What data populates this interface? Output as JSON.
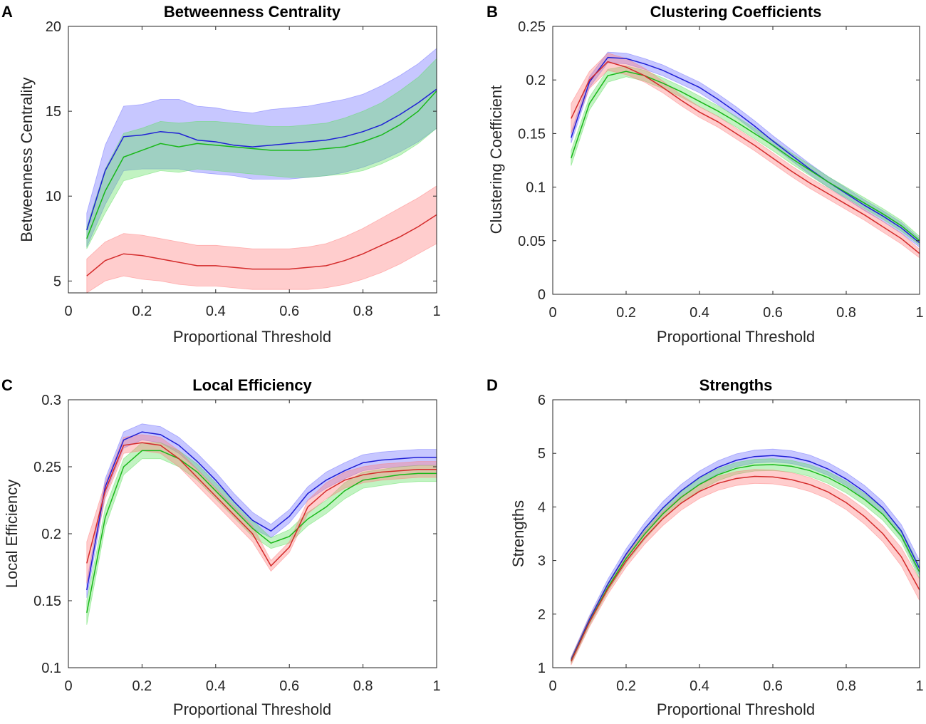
{
  "chart_data": [
    {
      "panel": "A",
      "type": "line",
      "title": "Betweenness Centrality",
      "xlabel": "Proportional Threshold",
      "ylabel": "Betweenness Centrality",
      "xlim": [
        0,
        1
      ],
      "ylim": [
        4.3,
        20
      ],
      "xticks": [
        0,
        0.2,
        0.4,
        0.6,
        0.8,
        1
      ],
      "xtick_labels": [
        "0",
        "0.2",
        "0.4",
        "0.6",
        "0.8",
        "1"
      ],
      "yticks": [
        5,
        10,
        15,
        20
      ],
      "ytick_labels": [
        "5",
        "10",
        "15",
        "20"
      ],
      "x": [
        0.05,
        0.1,
        0.15,
        0.2,
        0.25,
        0.3,
        0.35,
        0.4,
        0.45,
        0.5,
        0.55,
        0.6,
        0.65,
        0.7,
        0.75,
        0.8,
        0.85,
        0.9,
        0.95,
        1.0
      ],
      "series": [
        {
          "name": "blue",
          "color": "#1f1fd6",
          "band_color": "#6b6bff",
          "values": [
            8.0,
            11.5,
            13.5,
            13.6,
            13.8,
            13.7,
            13.3,
            13.2,
            13.0,
            12.9,
            13.0,
            13.1,
            13.2,
            13.3,
            13.5,
            13.8,
            14.2,
            14.8,
            15.5,
            16.3
          ],
          "lower": [
            7.0,
            9.5,
            11.5,
            11.6,
            11.6,
            11.6,
            11.4,
            11.3,
            11.2,
            11.0,
            11.0,
            11.0,
            11.1,
            11.2,
            11.4,
            11.7,
            12.1,
            12.6,
            13.2,
            14.0
          ],
          "upper": [
            9.0,
            13.0,
            15.3,
            15.4,
            15.7,
            15.7,
            15.3,
            15.2,
            15.0,
            14.9,
            15.1,
            15.2,
            15.3,
            15.5,
            15.7,
            16.0,
            16.5,
            17.1,
            17.8,
            18.7
          ]
        },
        {
          "name": "green",
          "color": "#19b819",
          "band_color": "#5fe05f",
          "values": [
            7.5,
            10.3,
            12.3,
            12.7,
            13.1,
            12.9,
            13.1,
            13.0,
            12.9,
            12.8,
            12.7,
            12.7,
            12.7,
            12.8,
            12.9,
            13.2,
            13.6,
            14.2,
            15.0,
            16.2
          ],
          "lower": [
            6.9,
            9.0,
            10.9,
            11.2,
            11.5,
            11.4,
            11.6,
            11.5,
            11.4,
            11.3,
            11.2,
            11.1,
            11.1,
            11.2,
            11.3,
            11.5,
            11.9,
            12.4,
            13.1,
            14.0
          ],
          "upper": [
            8.2,
            11.6,
            13.7,
            14.0,
            14.4,
            14.3,
            14.4,
            14.4,
            14.3,
            14.2,
            14.1,
            14.1,
            14.2,
            14.3,
            14.6,
            15.0,
            15.5,
            16.2,
            17.0,
            18.1
          ]
        },
        {
          "name": "red",
          "color": "#d42a2a",
          "band_color": "#ff7b7b",
          "values": [
            5.3,
            6.2,
            6.6,
            6.5,
            6.3,
            6.1,
            5.9,
            5.9,
            5.8,
            5.7,
            5.7,
            5.7,
            5.8,
            5.9,
            6.2,
            6.6,
            7.1,
            7.6,
            8.2,
            8.9
          ],
          "lower": [
            4.3,
            5.0,
            5.3,
            5.1,
            5.0,
            4.8,
            4.7,
            4.7,
            4.6,
            4.5,
            4.5,
            4.5,
            4.5,
            4.6,
            4.8,
            5.1,
            5.5,
            6.0,
            6.6,
            7.2
          ],
          "upper": [
            6.3,
            7.3,
            7.8,
            7.7,
            7.5,
            7.3,
            7.1,
            7.1,
            7.0,
            6.9,
            6.9,
            6.9,
            7.0,
            7.2,
            7.6,
            8.1,
            8.7,
            9.3,
            9.9,
            10.6
          ]
        }
      ]
    },
    {
      "panel": "B",
      "type": "line",
      "title": "Clustering Coefficients",
      "xlabel": "Proportional Threshold",
      "ylabel": "Clustering Coefficient",
      "xlim": [
        0,
        1
      ],
      "ylim": [
        0,
        0.25
      ],
      "xticks": [
        0,
        0.2,
        0.4,
        0.6,
        0.8,
        1
      ],
      "xtick_labels": [
        "0",
        "0.2",
        "0.4",
        "0.6",
        "0.8",
        "1"
      ],
      "yticks": [
        0,
        0.05,
        0.1,
        0.15,
        0.2,
        0.25
      ],
      "ytick_labels": [
        "0",
        "0.05",
        "0.1",
        "0.15",
        "0.2",
        "0.25"
      ],
      "x": [
        0.05,
        0.1,
        0.15,
        0.2,
        0.25,
        0.3,
        0.35,
        0.4,
        0.45,
        0.5,
        0.55,
        0.6,
        0.65,
        0.7,
        0.75,
        0.8,
        0.85,
        0.9,
        0.95,
        1.0
      ],
      "series": [
        {
          "name": "blue",
          "color": "#1f1fd6",
          "band_color": "#6b6bff",
          "values": [
            0.146,
            0.198,
            0.221,
            0.22,
            0.215,
            0.209,
            0.201,
            0.193,
            0.182,
            0.17,
            0.157,
            0.143,
            0.13,
            0.117,
            0.105,
            0.094,
            0.083,
            0.073,
            0.062,
            0.048
          ],
          "lower": [
            0.141,
            0.193,
            0.216,
            0.215,
            0.21,
            0.204,
            0.196,
            0.188,
            0.177,
            0.165,
            0.152,
            0.138,
            0.125,
            0.112,
            0.1,
            0.089,
            0.078,
            0.068,
            0.057,
            0.044
          ],
          "upper": [
            0.151,
            0.203,
            0.226,
            0.225,
            0.22,
            0.214,
            0.206,
            0.198,
            0.187,
            0.175,
            0.162,
            0.148,
            0.135,
            0.122,
            0.11,
            0.099,
            0.088,
            0.078,
            0.067,
            0.052
          ]
        },
        {
          "name": "green",
          "color": "#19b819",
          "band_color": "#5fe05f",
          "values": [
            0.127,
            0.178,
            0.204,
            0.208,
            0.204,
            0.197,
            0.189,
            0.18,
            0.171,
            0.161,
            0.15,
            0.139,
            0.127,
            0.116,
            0.105,
            0.095,
            0.085,
            0.075,
            0.064,
            0.05
          ],
          "lower": [
            0.12,
            0.172,
            0.198,
            0.203,
            0.199,
            0.192,
            0.184,
            0.175,
            0.166,
            0.156,
            0.145,
            0.134,
            0.122,
            0.111,
            0.1,
            0.09,
            0.08,
            0.07,
            0.059,
            0.046
          ],
          "upper": [
            0.134,
            0.184,
            0.21,
            0.213,
            0.209,
            0.202,
            0.194,
            0.185,
            0.176,
            0.166,
            0.155,
            0.144,
            0.132,
            0.121,
            0.11,
            0.1,
            0.09,
            0.08,
            0.069,
            0.054
          ]
        },
        {
          "name": "red",
          "color": "#d42a2a",
          "band_color": "#ff7b7b",
          "values": [
            0.164,
            0.2,
            0.217,
            0.212,
            0.204,
            0.193,
            0.181,
            0.17,
            0.161,
            0.15,
            0.139,
            0.127,
            0.115,
            0.104,
            0.094,
            0.084,
            0.074,
            0.063,
            0.052,
            0.038
          ],
          "lower": [
            0.15,
            0.192,
            0.209,
            0.205,
            0.198,
            0.188,
            0.176,
            0.165,
            0.156,
            0.145,
            0.134,
            0.122,
            0.11,
            0.099,
            0.089,
            0.079,
            0.069,
            0.058,
            0.047,
            0.034
          ],
          "upper": [
            0.178,
            0.208,
            0.225,
            0.22,
            0.211,
            0.199,
            0.186,
            0.175,
            0.166,
            0.155,
            0.144,
            0.132,
            0.12,
            0.109,
            0.099,
            0.089,
            0.079,
            0.068,
            0.057,
            0.042
          ]
        }
      ]
    },
    {
      "panel": "C",
      "type": "line",
      "title": "Local Efficiency",
      "xlabel": "Proportional Threshold",
      "ylabel": "Local Efficiency",
      "xlim": [
        0,
        1
      ],
      "ylim": [
        0.1,
        0.3
      ],
      "xticks": [
        0,
        0.2,
        0.4,
        0.6,
        0.8,
        1
      ],
      "xtick_labels": [
        "0",
        "0.2",
        "0.4",
        "0.6",
        "0.8",
        "1"
      ],
      "yticks": [
        0.1,
        0.15,
        0.2,
        0.25,
        0.3
      ],
      "ytick_labels": [
        "0.1",
        "0.15",
        "0.2",
        "0.25",
        "0.3"
      ],
      "x": [
        0.05,
        0.1,
        0.15,
        0.2,
        0.25,
        0.3,
        0.35,
        0.4,
        0.45,
        0.5,
        0.55,
        0.6,
        0.65,
        0.7,
        0.75,
        0.8,
        0.85,
        0.9,
        0.95,
        1.0
      ],
      "series": [
        {
          "name": "blue",
          "color": "#1f1fd6",
          "band_color": "#6b6bff",
          "values": [
            0.158,
            0.235,
            0.27,
            0.276,
            0.274,
            0.266,
            0.254,
            0.24,
            0.224,
            0.21,
            0.202,
            0.213,
            0.23,
            0.24,
            0.247,
            0.253,
            0.255,
            0.256,
            0.257,
            0.257
          ],
          "lower": [
            0.152,
            0.229,
            0.264,
            0.27,
            0.268,
            0.26,
            0.248,
            0.234,
            0.218,
            0.204,
            0.197,
            0.208,
            0.225,
            0.234,
            0.241,
            0.247,
            0.249,
            0.25,
            0.251,
            0.251
          ],
          "upper": [
            0.164,
            0.241,
            0.276,
            0.282,
            0.28,
            0.272,
            0.26,
            0.246,
            0.23,
            0.216,
            0.207,
            0.218,
            0.235,
            0.246,
            0.253,
            0.259,
            0.261,
            0.262,
            0.263,
            0.263
          ]
        },
        {
          "name": "green",
          "color": "#19b819",
          "band_color": "#5fe05f",
          "values": [
            0.141,
            0.212,
            0.25,
            0.262,
            0.262,
            0.256,
            0.246,
            0.232,
            0.218,
            0.204,
            0.193,
            0.198,
            0.211,
            0.22,
            0.232,
            0.24,
            0.242,
            0.244,
            0.245,
            0.245
          ],
          "lower": [
            0.132,
            0.205,
            0.244,
            0.256,
            0.256,
            0.25,
            0.24,
            0.226,
            0.212,
            0.198,
            0.189,
            0.193,
            0.206,
            0.215,
            0.226,
            0.234,
            0.236,
            0.238,
            0.239,
            0.239
          ],
          "upper": [
            0.15,
            0.219,
            0.256,
            0.268,
            0.268,
            0.262,
            0.252,
            0.238,
            0.224,
            0.21,
            0.197,
            0.203,
            0.216,
            0.225,
            0.238,
            0.246,
            0.248,
            0.25,
            0.251,
            0.251
          ]
        },
        {
          "name": "red",
          "color": "#d42a2a",
          "band_color": "#ff7b7b",
          "values": [
            0.178,
            0.232,
            0.266,
            0.268,
            0.266,
            0.256,
            0.242,
            0.228,
            0.214,
            0.2,
            0.176,
            0.19,
            0.22,
            0.232,
            0.24,
            0.244,
            0.246,
            0.247,
            0.248,
            0.248
          ],
          "lower": [
            0.163,
            0.226,
            0.26,
            0.262,
            0.26,
            0.25,
            0.236,
            0.222,
            0.208,
            0.194,
            0.172,
            0.186,
            0.215,
            0.226,
            0.234,
            0.238,
            0.24,
            0.241,
            0.242,
            0.242
          ],
          "upper": [
            0.194,
            0.238,
            0.272,
            0.274,
            0.272,
            0.262,
            0.248,
            0.234,
            0.22,
            0.206,
            0.18,
            0.194,
            0.225,
            0.238,
            0.246,
            0.25,
            0.252,
            0.253,
            0.254,
            0.254
          ]
        }
      ]
    },
    {
      "panel": "D",
      "type": "line",
      "title": "Strengths",
      "xlabel": "Proportional Threshold",
      "ylabel": "Strengths",
      "xlim": [
        0,
        1
      ],
      "ylim": [
        1,
        6
      ],
      "xticks": [
        0,
        0.2,
        0.4,
        0.6,
        0.8,
        1
      ],
      "xtick_labels": [
        "0",
        "0.2",
        "0.4",
        "0.6",
        "0.8",
        "1"
      ],
      "yticks": [
        1,
        2,
        3,
        4,
        5,
        6
      ],
      "ytick_labels": [
        "1",
        "2",
        "3",
        "4",
        "5",
        "6"
      ],
      "x": [
        0.05,
        0.1,
        0.15,
        0.2,
        0.25,
        0.3,
        0.35,
        0.4,
        0.45,
        0.5,
        0.55,
        0.6,
        0.65,
        0.7,
        0.75,
        0.8,
        0.85,
        0.9,
        0.95,
        1.0
      ],
      "series": [
        {
          "name": "blue",
          "color": "#1f1fd6",
          "band_color": "#6b6bff",
          "values": [
            1.15,
            1.9,
            2.56,
            3.12,
            3.59,
            3.98,
            4.3,
            4.55,
            4.74,
            4.87,
            4.94,
            4.96,
            4.93,
            4.85,
            4.71,
            4.52,
            4.28,
            3.98,
            3.55,
            2.85
          ],
          "lower": [
            1.1,
            1.83,
            2.47,
            3.02,
            3.48,
            3.86,
            4.18,
            4.43,
            4.62,
            4.75,
            4.82,
            4.84,
            4.81,
            4.73,
            4.59,
            4.4,
            4.16,
            3.86,
            3.43,
            2.72
          ],
          "upper": [
            1.2,
            1.97,
            2.65,
            3.22,
            3.7,
            4.1,
            4.42,
            4.67,
            4.86,
            4.99,
            5.06,
            5.08,
            5.05,
            4.97,
            4.83,
            4.64,
            4.4,
            4.1,
            3.67,
            3.0
          ]
        },
        {
          "name": "green",
          "color": "#19b819",
          "band_color": "#5fe05f",
          "values": [
            1.13,
            1.86,
            2.5,
            3.04,
            3.49,
            3.87,
            4.18,
            4.42,
            4.6,
            4.72,
            4.78,
            4.79,
            4.76,
            4.68,
            4.55,
            4.37,
            4.14,
            3.86,
            3.46,
            2.78
          ],
          "lower": [
            1.08,
            1.79,
            2.42,
            2.95,
            3.39,
            3.77,
            4.07,
            4.31,
            4.49,
            4.61,
            4.67,
            4.68,
            4.65,
            4.57,
            4.44,
            4.26,
            4.03,
            3.75,
            3.35,
            2.66
          ],
          "upper": [
            1.18,
            1.93,
            2.58,
            3.13,
            3.59,
            3.97,
            4.29,
            4.53,
            4.71,
            4.83,
            4.89,
            4.9,
            4.87,
            4.79,
            4.66,
            4.48,
            4.25,
            3.97,
            3.57,
            2.9
          ]
        },
        {
          "name": "red",
          "color": "#d42a2a",
          "band_color": "#ff7b7b",
          "values": [
            1.12,
            1.85,
            2.47,
            2.99,
            3.42,
            3.78,
            4.07,
            4.29,
            4.44,
            4.53,
            4.57,
            4.56,
            4.51,
            4.42,
            4.28,
            4.08,
            3.82,
            3.5,
            3.07,
            2.45
          ],
          "lower": [
            1.05,
            1.76,
            2.37,
            2.88,
            3.3,
            3.65,
            3.94,
            4.16,
            4.31,
            4.4,
            4.44,
            4.43,
            4.38,
            4.29,
            4.15,
            3.95,
            3.68,
            3.35,
            2.9,
            2.25
          ],
          "upper": [
            1.19,
            1.94,
            2.57,
            3.1,
            3.54,
            3.91,
            4.2,
            4.42,
            4.57,
            4.66,
            4.7,
            4.69,
            4.64,
            4.55,
            4.41,
            4.21,
            3.96,
            3.65,
            3.24,
            2.65
          ]
        }
      ]
    }
  ]
}
